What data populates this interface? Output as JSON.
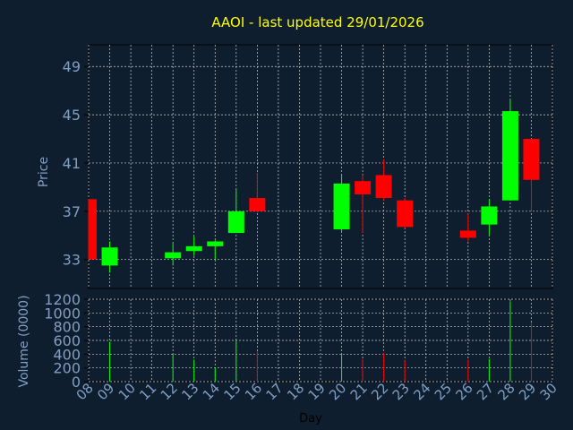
{
  "colors": {
    "background": "#0f1e2e",
    "frame": "#000000",
    "grid": "#cfcfcf",
    "title": "#ffff00",
    "axis_text": "#7f9fc3",
    "day_label": "#000000",
    "up": "#00ff00",
    "down": "#ff0000"
  },
  "chart_data": {
    "type": "candlestick",
    "title": "AAOI - last updated 29/01/2026",
    "price_axis": {
      "label": "Price",
      "ticks": [
        33,
        37,
        41,
        45,
        49
      ],
      "range": [
        30.6,
        50.8
      ]
    },
    "volume_axis": {
      "label": "Volume (0000)",
      "ticks": [
        0,
        200,
        400,
        600,
        800,
        1000,
        1200
      ],
      "range": [
        0,
        1200
      ]
    },
    "x_axis": {
      "label": "Day",
      "ticks": [
        "08",
        "09",
        "10",
        "11",
        "12",
        "13",
        "14",
        "15",
        "16",
        "17",
        "18",
        "19",
        "20",
        "21",
        "22",
        "23",
        "24",
        "25",
        "26",
        "27",
        "28",
        "29",
        "30"
      ],
      "range": [
        8,
        30
      ]
    },
    "grid": true,
    "candles": [
      {
        "day": 8,
        "open": 38.0,
        "high": 38.0,
        "low": 33.0,
        "close": 33.0,
        "volume": 0
      },
      {
        "day": 9,
        "open": 32.5,
        "high": 34.5,
        "low": 31.9,
        "close": 34.0,
        "volume": 580
      },
      {
        "day": 12,
        "open": 33.1,
        "high": 34.4,
        "low": 32.5,
        "close": 33.6,
        "volume": 400
      },
      {
        "day": 13,
        "open": 33.7,
        "high": 34.9,
        "low": 33.3,
        "close": 34.1,
        "volume": 320
      },
      {
        "day": 14,
        "open": 34.1,
        "high": 34.6,
        "low": 33.0,
        "close": 34.5,
        "volume": 200
      },
      {
        "day": 15,
        "open": 35.2,
        "high": 38.8,
        "low": 35.2,
        "close": 37.0,
        "volume": 590
      },
      {
        "day": 16,
        "open": 38.1,
        "high": 40.2,
        "low": 36.9,
        "close": 37.0,
        "volume": 440
      },
      {
        "day": 20,
        "open": 35.5,
        "high": 40.1,
        "low": 35.3,
        "close": 39.3,
        "volume": 410
      },
      {
        "day": 21,
        "open": 39.5,
        "high": 40.0,
        "low": 35.2,
        "close": 38.4,
        "volume": 330
      },
      {
        "day": 22,
        "open": 40.0,
        "high": 41.3,
        "low": 37.9,
        "close": 38.1,
        "volume": 420
      },
      {
        "day": 23,
        "open": 37.9,
        "high": 38.1,
        "low": 35.6,
        "close": 35.7,
        "volume": 310
      },
      {
        "day": 26,
        "open": 35.4,
        "high": 36.8,
        "low": 34.5,
        "close": 34.8,
        "volume": 320
      },
      {
        "day": 27,
        "open": 35.9,
        "high": 38.0,
        "low": 35.0,
        "close": 37.4,
        "volume": 330
      },
      {
        "day": 28,
        "open": 37.9,
        "high": 46.3,
        "low": 37.9,
        "close": 45.3,
        "volume": 1170
      },
      {
        "day": 29,
        "open": 43.0,
        "high": 43.0,
        "low": 37.0,
        "close": 39.6,
        "volume": 860
      }
    ]
  }
}
